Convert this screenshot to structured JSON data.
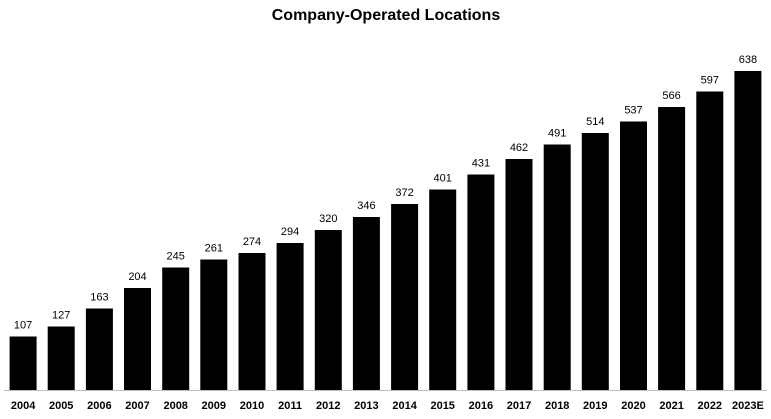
{
  "chart_data": {
    "type": "bar",
    "title": "Company-Operated Locations",
    "xlabel": "",
    "ylabel": "",
    "categories": [
      "2004",
      "2005",
      "2006",
      "2007",
      "2008",
      "2009",
      "2010",
      "2011",
      "2012",
      "2013",
      "2014",
      "2015",
      "2016",
      "2017",
      "2018",
      "2019",
      "2020",
      "2021",
      "2022",
      "2023E"
    ],
    "values": [
      107,
      127,
      163,
      204,
      245,
      261,
      274,
      294,
      320,
      346,
      372,
      401,
      431,
      462,
      491,
      514,
      537,
      566,
      597,
      638
    ],
    "ylim": [
      0,
      638
    ],
    "grid": false,
    "legend": "none",
    "data_labels": true,
    "colors": {
      "bar": "#000000",
      "axis": "#bfbfbf",
      "text": "#000000",
      "background": "#ffffff"
    }
  }
}
